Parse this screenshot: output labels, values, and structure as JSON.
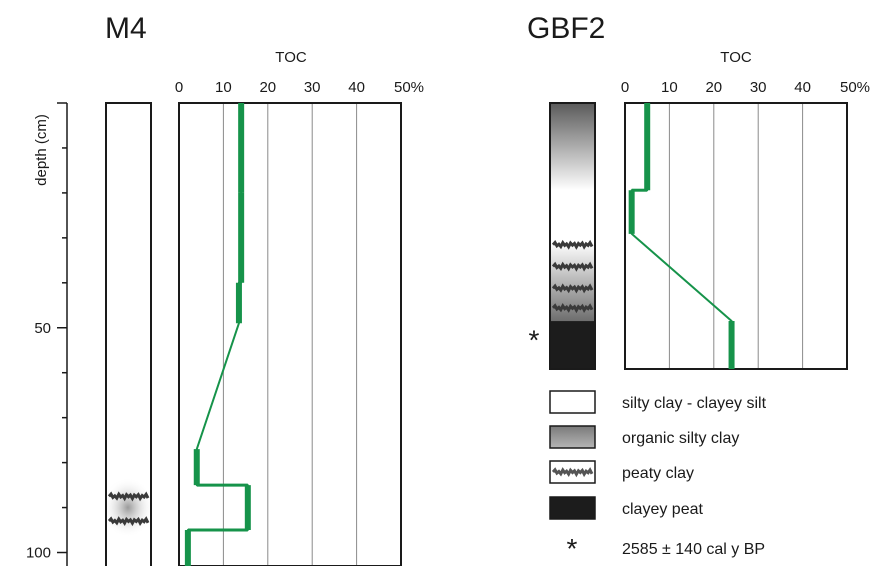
{
  "chart_data": [
    {
      "type": "line",
      "title": "M4",
      "xlabel": "TOC",
      "ylabel": "depth (cm)",
      "x_ticks": [
        "0",
        "10",
        "20",
        "30",
        "40",
        "50%"
      ],
      "y_ticks": [
        "50",
        "100"
      ],
      "xlim": [
        0,
        50
      ],
      "ylim": [
        0,
        103
      ],
      "grid": true,
      "y_inverted": true,
      "color": "#16934a",
      "series": [
        {
          "x": [
            14,
            14,
            14,
            14,
            13.5,
            13.5,
            13.5,
            4,
            4,
            4,
            15.5,
            15.5,
            15.5,
            2,
            2
          ],
          "y": [
            0,
            20,
            20,
            40,
            40,
            49,
            49,
            77,
            77,
            85,
            85,
            95,
            95,
            95,
            103
          ],
          "bold_segments": [
            [
              0,
              20
            ],
            [
              40,
              49
            ],
            [
              77,
              85
            ],
            [
              85,
              95
            ],
            [
              95,
              103
            ]
          ]
        }
      ],
      "lithology": [
        {
          "from": 0,
          "to": 65,
          "unit": "organic silty clay",
          "gradient": "dark-to-light"
        },
        {
          "from": 65,
          "to": 103,
          "unit": "silty clay - clayey silt"
        },
        {
          "from": 85,
          "to": 95,
          "unit": "peaty clay",
          "bands": [
            87.5,
            93
          ]
        }
      ]
    },
    {
      "type": "line",
      "title": "GBF2",
      "xlabel": "TOC",
      "x_ticks": [
        "0",
        "10",
        "20",
        "30",
        "40",
        "50%"
      ],
      "xlim": [
        0,
        50
      ],
      "ylim": [
        0,
        61
      ],
      "grid": true,
      "y_inverted": true,
      "color": "#16934a",
      "series": [
        {
          "x": [
            5,
            5,
            5,
            1.5,
            1.5,
            1.5,
            24,
            24
          ],
          "y": [
            0,
            20,
            20,
            20,
            30,
            30,
            50,
            61
          ],
          "bold_segments": [
            [
              0,
              20
            ],
            [
              20,
              30
            ],
            [
              50,
              61
            ]
          ]
        }
      ],
      "lithology": [
        {
          "from": 0,
          "to": 20,
          "unit": "organic silty clay",
          "gradient": "dark-to-light"
        },
        {
          "from": 20,
          "to": 32,
          "unit": "silty clay - clayey silt"
        },
        {
          "from": 32,
          "to": 50,
          "unit": "organic silty clay",
          "gradient": "light-to-dark",
          "peaty_bands": [
            32.5,
            37.5,
            42.5,
            47
          ]
        },
        {
          "from": 50,
          "to": 61,
          "unit": "clayey peat"
        }
      ],
      "date_marker": {
        "depth": 54,
        "symbol": "*"
      }
    }
  ],
  "legend": [
    {
      "swatch": "white",
      "label": "silty clay - clayey silt"
    },
    {
      "swatch": "gray",
      "label": "organic silty clay"
    },
    {
      "swatch": "peaty",
      "label": "peaty clay"
    },
    {
      "swatch": "black",
      "label": "clayey peat"
    },
    {
      "swatch": "asterisk",
      "label": "2585 ± 140 cal y BP"
    }
  ]
}
